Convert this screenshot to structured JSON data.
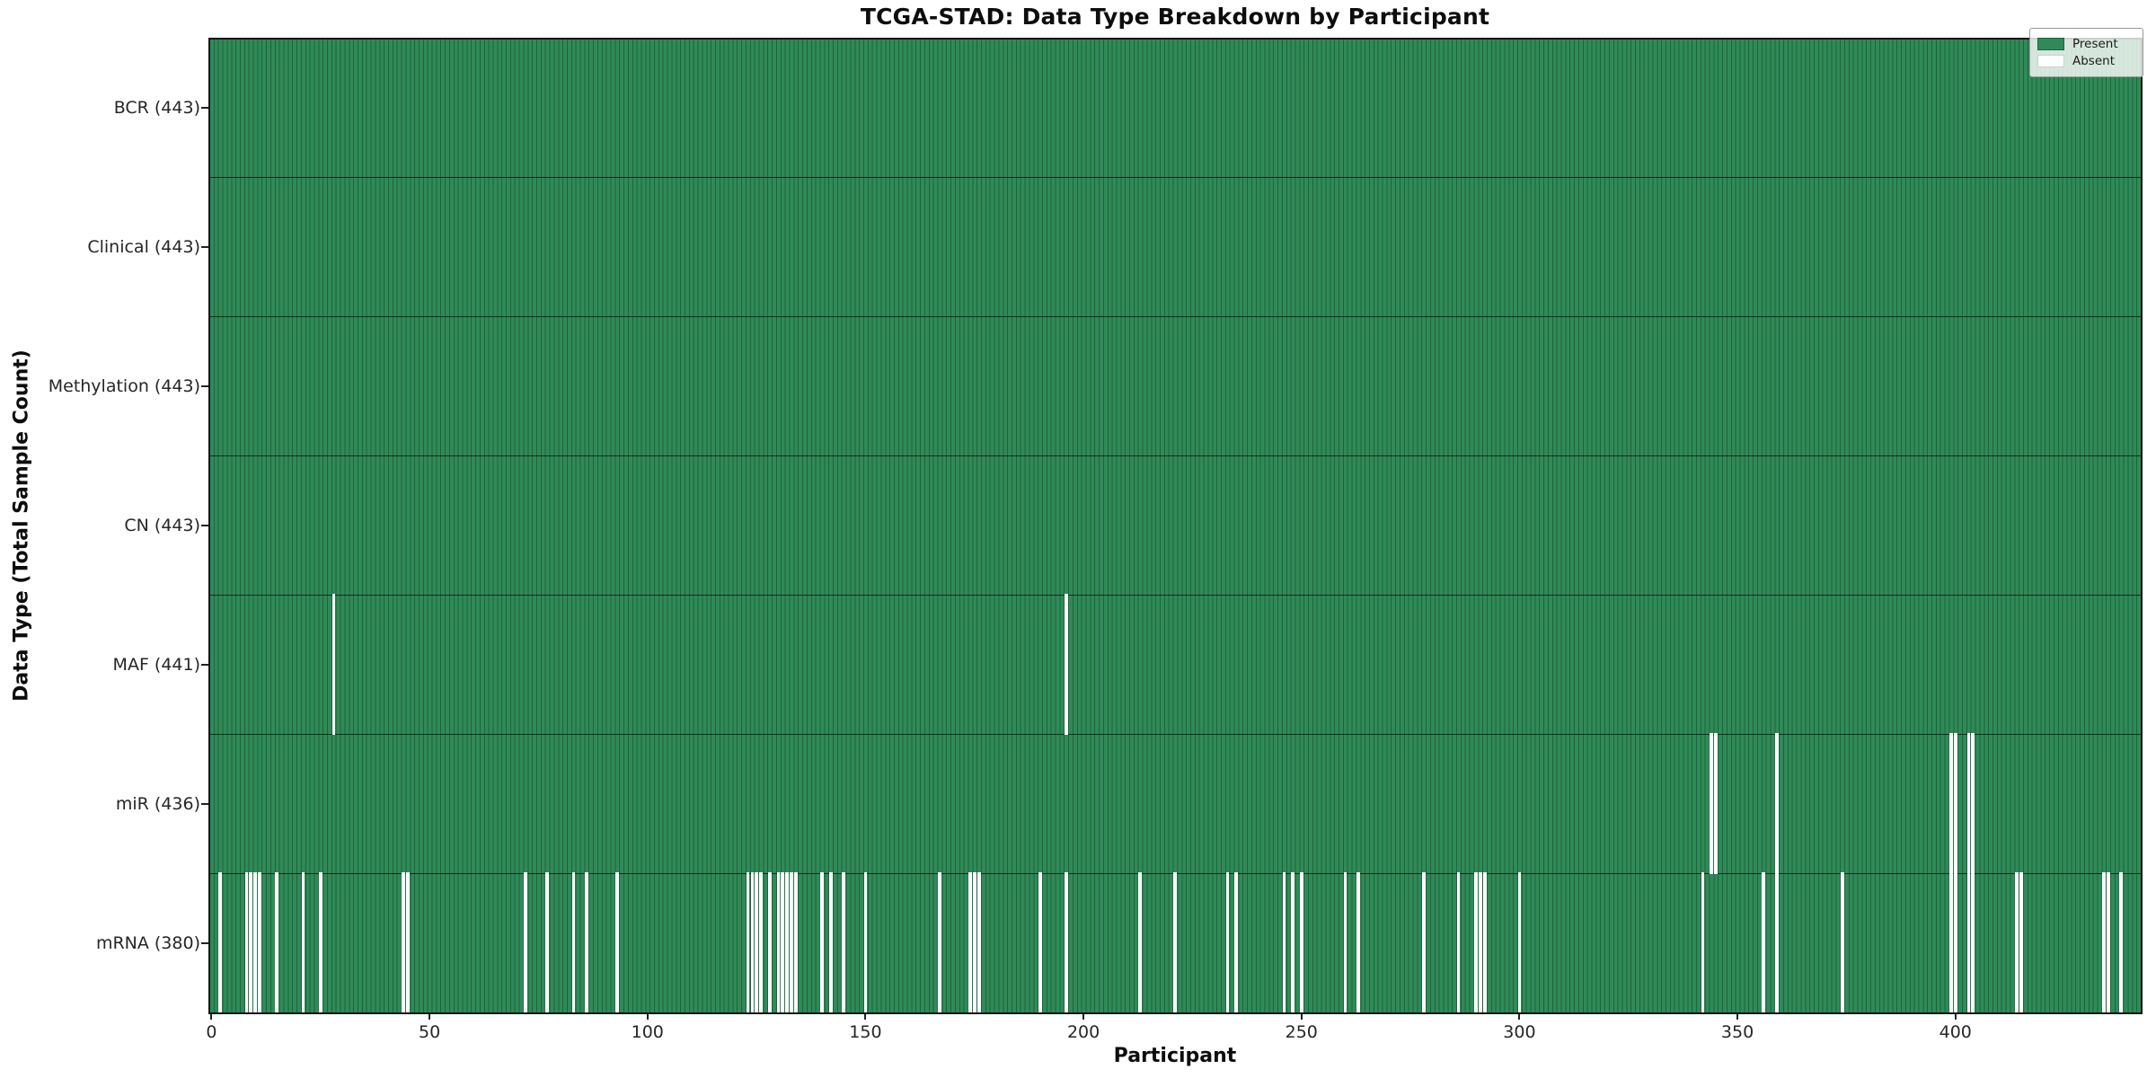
{
  "chart_data": {
    "type": "heatmap",
    "title": "TCGA-STAD: Data Type Breakdown by Participant",
    "xlabel": "Participant",
    "ylabel": "Data Type (Total Sample Count)",
    "n_participants": 443,
    "xlim": [
      -0.5,
      442.5
    ],
    "x_ticks": [
      0,
      50,
      100,
      150,
      200,
      250,
      300,
      350,
      400
    ],
    "grid": false,
    "legend_position": "upper right",
    "legend": [
      {
        "label": "Present",
        "color": "#2e8b57"
      },
      {
        "label": "Absent",
        "color": "#ffffff"
      }
    ],
    "colors": {
      "present_fill": "#2e8b57",
      "bar_edge": "#24603f",
      "absent_fill": "#ffffff",
      "frame": "#111111"
    },
    "rows": [
      {
        "label": "BCR (443)",
        "data_type": "BCR",
        "present_count": 443,
        "absent_participants": []
      },
      {
        "label": "Clinical (443)",
        "data_type": "Clinical",
        "present_count": 443,
        "absent_participants": []
      },
      {
        "label": "Methylation (443)",
        "data_type": "Methylation",
        "present_count": 443,
        "absent_participants": []
      },
      {
        "label": "CN (443)",
        "data_type": "CN",
        "present_count": 443,
        "absent_participants": []
      },
      {
        "label": "MAF (441)",
        "data_type": "MAF",
        "present_count": 441,
        "absent_participants": [
          28,
          196
        ]
      },
      {
        "label": "miR (436)",
        "data_type": "miR",
        "present_count": 436,
        "absent_participants": [
          344,
          345,
          359,
          399,
          400,
          403,
          404
        ]
      },
      {
        "label": "mRNA (380)",
        "data_type": "mRNA",
        "present_count": 380,
        "absent_participants": [
          2,
          8,
          9,
          10,
          11,
          15,
          21,
          25,
          44,
          45,
          72,
          77,
          83,
          86,
          93,
          123,
          124,
          125,
          126,
          128,
          130,
          131,
          132,
          133,
          134,
          140,
          142,
          145,
          150,
          167,
          174,
          175,
          176,
          190,
          196,
          213,
          221,
          233,
          235,
          246,
          248,
          250,
          260,
          263,
          278,
          286,
          290,
          291,
          292,
          300,
          342,
          356,
          359,
          374,
          399,
          400,
          403,
          404,
          414,
          415,
          434,
          435,
          438
        ]
      }
    ]
  }
}
